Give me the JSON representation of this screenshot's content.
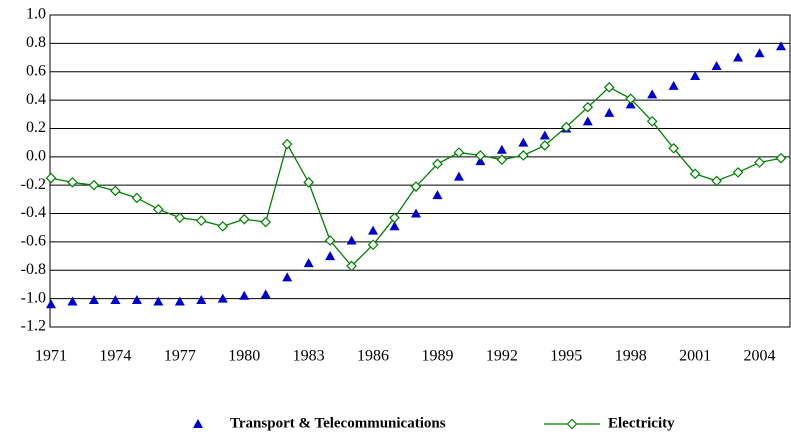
{
  "chart_data": {
    "type": "line",
    "categories": [
      "1971",
      null,
      null,
      "1974",
      null,
      null,
      "1977",
      null,
      null,
      "1980",
      null,
      null,
      "1983",
      null,
      null,
      "1986",
      null,
      null,
      "1989",
      null,
      null,
      "1992",
      null,
      null,
      "1995",
      null,
      null,
      "1998",
      null,
      null,
      "2001",
      null,
      null,
      "2004",
      null
    ],
    "series": [
      {
        "name": "Transport & Telecommunications",
        "color": "#0000cc",
        "marker": "triangle",
        "line": false,
        "values": [
          -1.04,
          -1.02,
          -1.01,
          -1.01,
          -1.01,
          -1.02,
          -1.02,
          -1.01,
          -1.0,
          -0.98,
          -0.97,
          -0.85,
          -0.75,
          -0.7,
          -0.59,
          -0.52,
          -0.49,
          -0.4,
          -0.27,
          -0.14,
          -0.03,
          0.05,
          0.1,
          0.15,
          0.2,
          0.25,
          0.31,
          0.37,
          0.44,
          0.5,
          0.57,
          0.64,
          0.7,
          0.73,
          0.78
        ]
      },
      {
        "name": "Electricity",
        "color": "#008000",
        "marker": "diamond",
        "line": true,
        "values": [
          -0.15,
          -0.18,
          -0.2,
          -0.24,
          -0.29,
          -0.37,
          -0.43,
          -0.45,
          -0.49,
          -0.44,
          -0.46,
          0.09,
          -0.18,
          -0.59,
          -0.77,
          -0.62,
          -0.43,
          -0.21,
          -0.05,
          0.03,
          0.01,
          -0.02,
          0.01,
          0.08,
          0.21,
          0.35,
          0.49,
          0.41,
          0.25,
          0.06,
          -0.12,
          -0.17,
          -0.11,
          -0.04,
          -0.01
        ]
      }
    ],
    "ylim": [
      -1.2,
      1.0
    ],
    "yticks": [
      {
        "value": -1.2,
        "label": "-1.2"
      },
      {
        "value": -1,
        "label": "-1.0"
      },
      -0.8,
      -0.6,
      -0.4,
      -0.2,
      {
        "value": 0,
        "label": "0.0"
      },
      0.2,
      0.4,
      0.6,
      0.8,
      {
        "value": 1,
        "label": "1.0"
      }
    ],
    "grid": true,
    "legend": "bottom"
  }
}
